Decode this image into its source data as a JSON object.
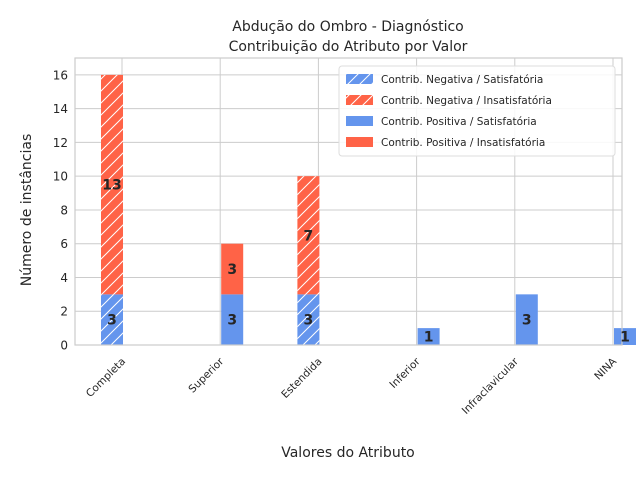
{
  "chart_data": {
    "type": "bar",
    "title_line1": "Abdução do Ombro - Diagnóstico",
    "title_line2": "Contribuição do Atributo por Valor",
    "xlabel": "Valores do Atributo",
    "ylabel": "Número de instâncias",
    "ylim": [
      0,
      17
    ],
    "yticks": [
      0,
      2,
      4,
      6,
      8,
      10,
      12,
      14,
      16
    ],
    "categories": [
      "Completa",
      "Superior",
      "Estendida",
      "Inferior",
      "Infraclavicular",
      "NINA"
    ],
    "grid": true,
    "legend_placement": "top-right",
    "series": [
      {
        "name": "Contrib. Negativa / Satisfatória",
        "group": "negativa",
        "hatch": true,
        "color": "#6495ED",
        "values": [
          3,
          0,
          3,
          0,
          0,
          0
        ]
      },
      {
        "name": "Contrib. Negativa / Insatisfatória",
        "group": "negativa",
        "hatch": true,
        "color": "#FF6347",
        "values": [
          13,
          0,
          7,
          0,
          0,
          0
        ]
      },
      {
        "name": "Contrib. Positiva / Satisfatória",
        "group": "positiva",
        "hatch": false,
        "color": "#6495ED",
        "values": [
          0,
          3,
          0,
          1,
          3,
          1
        ]
      },
      {
        "name": "Contrib. Positiva / Insatisfatória",
        "group": "positiva",
        "hatch": false,
        "color": "#FF6347",
        "values": [
          0,
          3,
          0,
          0,
          0,
          0
        ]
      }
    ]
  }
}
